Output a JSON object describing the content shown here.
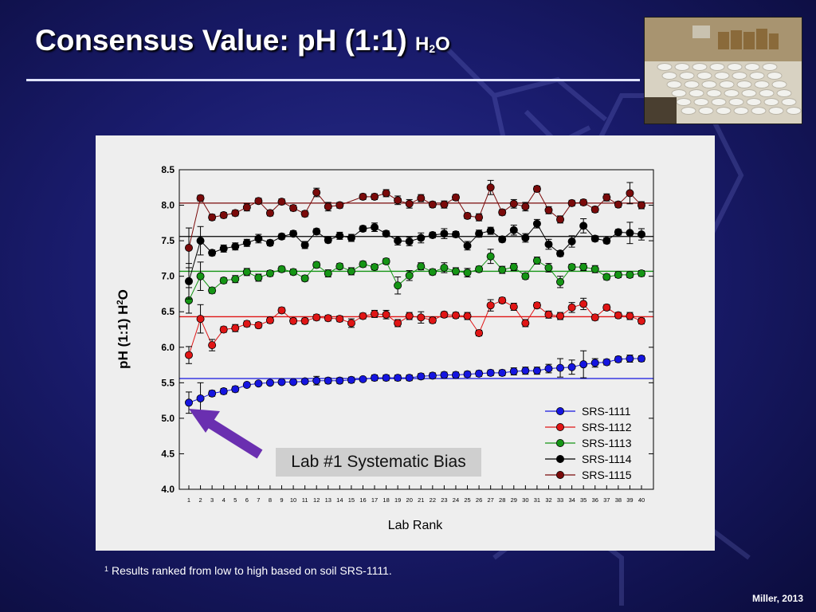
{
  "slide": {
    "title_main": "Consensus Value: pH (1:1) ",
    "title_h": "H",
    "title_sub": "2",
    "title_o": "O",
    "footnote_marker": "1",
    "footnote_text": "Results ranked from low to high based on soil SRS-1111.",
    "credit": "Miller, 2013",
    "callout": "Lab #1 Systematic Bias",
    "colors": {
      "background": "#1a1c6e",
      "arrow": "#6a2fb0",
      "panel": "#eeeeee"
    }
  },
  "chart_data": {
    "type": "line",
    "xlabel": "Lab Rank",
    "ylabel_main": "pH (1:1) H",
    "ylabel_sub": "2",
    "ylabel_tail": "O",
    "ylim": [
      4.0,
      8.5
    ],
    "yticks": [
      "4.0",
      "4.5",
      "5.0",
      "5.5",
      "6.0",
      "6.5",
      "7.0",
      "7.5",
      "8.0",
      "8.5"
    ],
    "x": [
      1,
      2,
      3,
      4,
      5,
      6,
      7,
      8,
      9,
      10,
      11,
      12,
      13,
      14,
      15,
      16,
      17,
      18,
      19,
      20,
      21,
      22,
      23,
      24,
      25,
      26,
      27,
      28,
      29,
      30,
      31,
      32,
      33,
      34,
      35,
      36,
      37,
      38,
      39,
      40
    ],
    "legend_placement": "bottom-right",
    "series": [
      {
        "name": "SRS-1111",
        "color": "#1515e0",
        "consensus": 5.56,
        "values": [
          5.22,
          5.28,
          5.35,
          5.38,
          5.41,
          5.47,
          5.49,
          5.5,
          5.51,
          5.51,
          5.52,
          5.53,
          5.53,
          5.53,
          5.54,
          5.55,
          5.57,
          5.57,
          5.57,
          5.57,
          5.59,
          5.6,
          5.61,
          5.61,
          5.62,
          5.63,
          5.64,
          5.64,
          5.66,
          5.67,
          5.67,
          5.7,
          5.71,
          5.72,
          5.76,
          5.78,
          5.79,
          5.83,
          5.84,
          5.84
        ],
        "errors": [
          0.15,
          0.22,
          0.04,
          0.04,
          0.04,
          0.03,
          0.03,
          0.03,
          0.03,
          0.03,
          0.03,
          0.06,
          0.04,
          0.04,
          0.04,
          0.03,
          0.04,
          0.04,
          0.04,
          0.04,
          0.04,
          0.04,
          0.04,
          0.04,
          0.04,
          0.04,
          0.04,
          0.04,
          0.05,
          0.05,
          0.05,
          0.06,
          0.13,
          0.1,
          0.19,
          0.06,
          0.04,
          0.04,
          0.05,
          0.04
        ]
      },
      {
        "name": "SRS-1112",
        "color": "#e01515",
        "consensus": 6.43,
        "values": [
          5.89,
          6.4,
          6.03,
          6.25,
          6.27,
          6.33,
          6.31,
          6.38,
          6.52,
          6.37,
          6.37,
          6.42,
          6.41,
          6.4,
          6.34,
          6.44,
          6.47,
          6.46,
          6.34,
          6.44,
          6.42,
          6.38,
          6.46,
          6.45,
          6.44,
          6.2,
          6.59,
          6.66,
          6.57,
          6.34,
          6.59,
          6.46,
          6.44,
          6.56,
          6.61,
          6.42,
          6.56,
          6.45,
          6.44,
          6.37
        ],
        "errors": [
          0.12,
          0.2,
          0.08,
          0.04,
          0.05,
          0.04,
          0.04,
          0.04,
          0.04,
          0.04,
          0.04,
          0.04,
          0.04,
          0.04,
          0.06,
          0.04,
          0.05,
          0.06,
          0.05,
          0.05,
          0.08,
          0.04,
          0.04,
          0.04,
          0.05,
          0.04,
          0.08,
          0.04,
          0.05,
          0.05,
          0.04,
          0.05,
          0.05,
          0.07,
          0.08,
          0.04,
          0.04,
          0.04,
          0.05,
          0.04
        ]
      },
      {
        "name": "SRS-1113",
        "color": "#159515",
        "consensus": 7.07,
        "values": [
          6.66,
          7.0,
          6.8,
          6.94,
          6.96,
          7.06,
          6.98,
          7.04,
          7.1,
          7.06,
          6.97,
          7.16,
          7.04,
          7.14,
          7.07,
          7.17,
          7.13,
          7.21,
          6.87,
          7.01,
          7.14,
          7.06,
          7.12,
          7.07,
          7.05,
          7.1,
          7.28,
          7.09,
          7.13,
          7.0,
          7.22,
          7.12,
          6.92,
          7.13,
          7.13,
          7.1,
          6.99,
          7.02,
          7.02,
          7.04
        ],
        "errors": [
          0.18,
          0.2,
          0.04,
          0.04,
          0.05,
          0.05,
          0.05,
          0.04,
          0.04,
          0.04,
          0.04,
          0.04,
          0.05,
          0.04,
          0.05,
          0.04,
          0.04,
          0.04,
          0.12,
          0.07,
          0.05,
          0.04,
          0.07,
          0.05,
          0.06,
          0.04,
          0.1,
          0.05,
          0.05,
          0.04,
          0.05,
          0.06,
          0.08,
          0.04,
          0.05,
          0.05,
          0.04,
          0.04,
          0.04,
          0.04
        ]
      },
      {
        "name": "SRS-1114",
        "color": "#000000",
        "consensus": 7.56,
        "values": [
          6.93,
          7.5,
          7.33,
          7.39,
          7.42,
          7.47,
          7.53,
          7.47,
          7.56,
          7.6,
          7.44,
          7.63,
          7.51,
          7.57,
          7.54,
          7.67,
          7.69,
          7.6,
          7.5,
          7.49,
          7.54,
          7.58,
          7.6,
          7.59,
          7.43,
          7.6,
          7.64,
          7.52,
          7.65,
          7.54,
          7.74,
          7.45,
          7.32,
          7.49,
          7.71,
          7.53,
          7.5,
          7.62,
          7.61,
          7.59
        ],
        "errors": [
          0.25,
          0.2,
          0.04,
          0.05,
          0.05,
          0.05,
          0.06,
          0.04,
          0.04,
          0.04,
          0.05,
          0.04,
          0.04,
          0.05,
          0.05,
          0.04,
          0.06,
          0.04,
          0.06,
          0.06,
          0.07,
          0.04,
          0.07,
          0.04,
          0.06,
          0.05,
          0.05,
          0.04,
          0.07,
          0.06,
          0.06,
          0.07,
          0.04,
          0.08,
          0.1,
          0.04,
          0.04,
          0.04,
          0.15,
          0.08
        ]
      },
      {
        "name": "SRS-1115",
        "color": "#7a0a0a",
        "consensus": 8.03,
        "values": [
          7.4,
          8.1,
          7.83,
          7.86,
          7.89,
          7.97,
          8.06,
          7.89,
          8.05,
          7.96,
          7.88,
          8.18,
          7.98,
          8.0,
          null,
          8.12,
          8.12,
          8.17,
          8.07,
          8.02,
          8.1,
          8.01,
          8.01,
          8.11,
          7.85,
          7.83,
          8.25,
          7.9,
          8.02,
          7.98,
          8.23,
          7.93,
          7.8,
          8.03,
          8.04,
          7.94,
          8.11,
          8.01,
          8.17,
          8.0
        ],
        "errors": [
          0.28,
          0.04,
          0.04,
          0.04,
          0.04,
          0.05,
          0.04,
          0.04,
          0.04,
          0.04,
          0.04,
          0.06,
          0.06,
          0.04,
          0.0,
          0.04,
          0.04,
          0.05,
          0.06,
          0.06,
          0.05,
          0.04,
          0.05,
          0.04,
          0.04,
          0.05,
          0.1,
          0.04,
          0.06,
          0.06,
          0.04,
          0.05,
          0.05,
          0.04,
          0.04,
          0.04,
          0.05,
          0.04,
          0.15,
          0.05
        ]
      }
    ]
  }
}
